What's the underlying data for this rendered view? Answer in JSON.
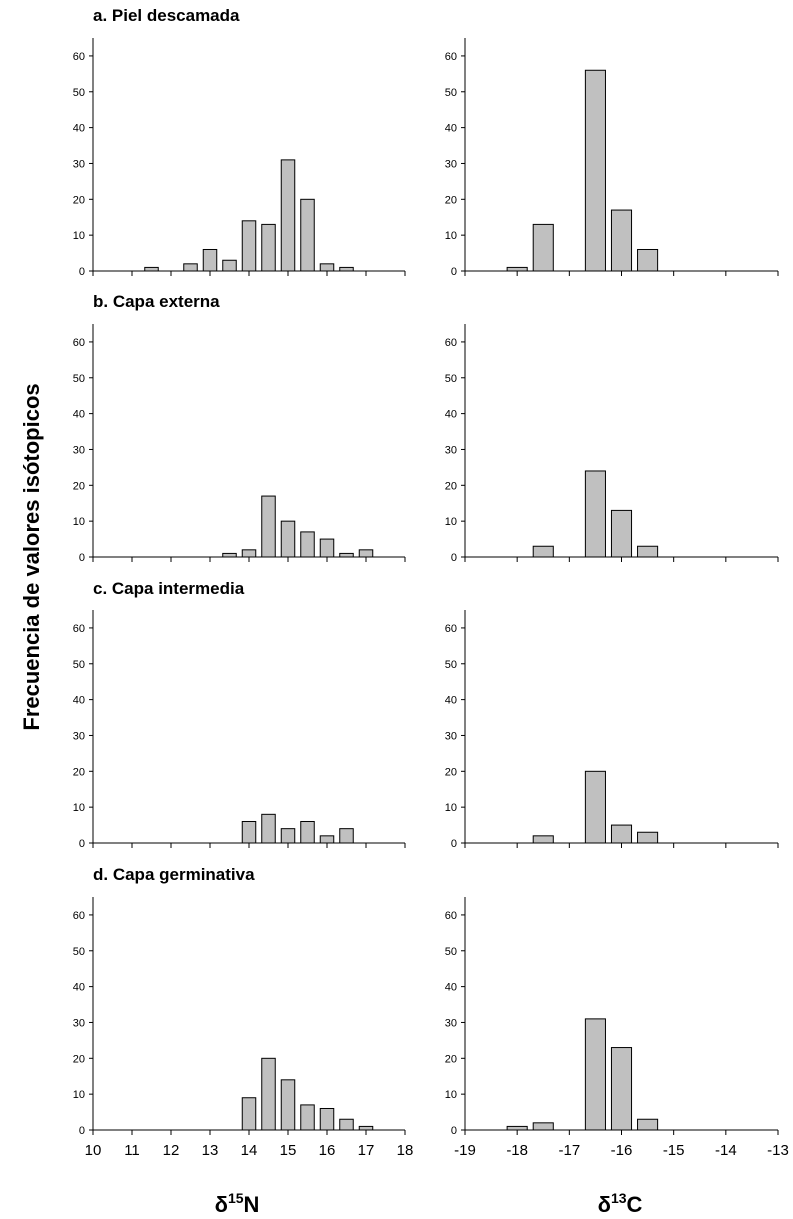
{
  "figure": {
    "ylabel": "Frecuencia de valores isótopicos",
    "xlabel_left": {
      "main": "δ",
      "sup": "15",
      "tail": "N"
    },
    "xlabel_right": {
      "main": "δ",
      "sup": "13",
      "tail": "C"
    },
    "colors": {
      "bar_fill": "#c0c0c0",
      "bar_stroke": "#000000",
      "axis": "#000000"
    }
  },
  "panels": [
    {
      "title": "a. Piel descamada"
    },
    {
      "title": "b. Capa externa"
    },
    {
      "title": "c. Capa intermedia"
    },
    {
      "title": "d. Capa germinativa"
    }
  ],
  "chart_data": [
    {
      "type": "bar",
      "panel": "a. Piel descamada",
      "isotope": "δ15N",
      "xlim": [
        10,
        18
      ],
      "ylim": [
        0,
        65
      ],
      "xticks": [
        "10",
        "11",
        "12",
        "13",
        "14",
        "15",
        "16",
        "17",
        "18"
      ],
      "yticks": [
        "0",
        "10",
        "20",
        "30",
        "40",
        "50",
        "60"
      ],
      "bin_width": 0.5,
      "x": [
        11.5,
        12.5,
        13,
        13.5,
        14,
        14.5,
        15,
        15.5,
        16,
        16.5
      ],
      "values": [
        1,
        2,
        6,
        3,
        14,
        13,
        31,
        20,
        2,
        1
      ]
    },
    {
      "type": "bar",
      "panel": "a. Piel descamada",
      "isotope": "δ13C",
      "xlim": [
        -19,
        -13
      ],
      "ylim": [
        0,
        65
      ],
      "xticks": [
        "-19",
        "-18",
        "-17",
        "-16",
        "-15",
        "-14",
        "-13"
      ],
      "yticks": [
        "0",
        "10",
        "20",
        "30",
        "40",
        "50",
        "60"
      ],
      "bin_width": 0.5,
      "x": [
        -18,
        -17.5,
        -16.5,
        -16,
        -15.5
      ],
      "values": [
        1,
        13,
        56,
        17,
        6
      ]
    },
    {
      "type": "bar",
      "panel": "b. Capa externa",
      "isotope": "δ15N",
      "xlim": [
        10,
        18
      ],
      "ylim": [
        0,
        65
      ],
      "xticks": [
        "10",
        "11",
        "12",
        "13",
        "14",
        "15",
        "16",
        "17",
        "18"
      ],
      "yticks": [
        "0",
        "10",
        "20",
        "30",
        "40",
        "50",
        "60"
      ],
      "bin_width": 0.5,
      "x": [
        13.5,
        14,
        14.5,
        15,
        15.5,
        16,
        16.5,
        17
      ],
      "values": [
        1,
        2,
        17,
        10,
        7,
        5,
        1,
        2
      ]
    },
    {
      "type": "bar",
      "panel": "b. Capa externa",
      "isotope": "δ13C",
      "xlim": [
        -19,
        -13
      ],
      "ylim": [
        0,
        65
      ],
      "xticks": [
        "-19",
        "-18",
        "-17",
        "-16",
        "-15",
        "-14",
        "-13"
      ],
      "yticks": [
        "0",
        "10",
        "20",
        "30",
        "40",
        "50",
        "60"
      ],
      "bin_width": 0.5,
      "x": [
        -17.5,
        -16.5,
        -16,
        -15.5
      ],
      "values": [
        3,
        24,
        13,
        3
      ]
    },
    {
      "type": "bar",
      "panel": "c. Capa intermedia",
      "isotope": "δ15N",
      "xlim": [
        10,
        18
      ],
      "ylim": [
        0,
        65
      ],
      "xticks": [
        "10",
        "11",
        "12",
        "13",
        "14",
        "15",
        "16",
        "17",
        "18"
      ],
      "yticks": [
        "0",
        "10",
        "20",
        "30",
        "40",
        "50",
        "60"
      ],
      "bin_width": 0.5,
      "x": [
        14,
        14.5,
        15,
        15.5,
        16,
        16.5
      ],
      "values": [
        6,
        8,
        4,
        6,
        2,
        4
      ]
    },
    {
      "type": "bar",
      "panel": "c. Capa intermedia",
      "isotope": "δ13C",
      "xlim": [
        -19,
        -13
      ],
      "ylim": [
        0,
        65
      ],
      "xticks": [
        "-19",
        "-18",
        "-17",
        "-16",
        "-15",
        "-14",
        "-13"
      ],
      "yticks": [
        "0",
        "10",
        "20",
        "30",
        "40",
        "50",
        "60"
      ],
      "bin_width": 0.5,
      "x": [
        -17.5,
        -16.5,
        -16,
        -15.5
      ],
      "values": [
        2,
        20,
        5,
        3
      ]
    },
    {
      "type": "bar",
      "panel": "d. Capa germinativa",
      "isotope": "δ15N",
      "xlim": [
        10,
        18
      ],
      "ylim": [
        0,
        65
      ],
      "xticks": [
        "10",
        "11",
        "12",
        "13",
        "14",
        "15",
        "16",
        "17",
        "18"
      ],
      "yticks": [
        "0",
        "10",
        "20",
        "30",
        "40",
        "50",
        "60"
      ],
      "bin_width": 0.5,
      "x": [
        14,
        14.5,
        15,
        15.5,
        16,
        16.5,
        17
      ],
      "values": [
        9,
        20,
        14,
        7,
        6,
        3,
        1
      ]
    },
    {
      "type": "bar",
      "panel": "d. Capa germinativa",
      "isotope": "δ13C",
      "xlim": [
        -19,
        -13
      ],
      "ylim": [
        0,
        65
      ],
      "xticks": [
        "-19",
        "-18",
        "-17",
        "-16",
        "-15",
        "-14",
        "-13"
      ],
      "yticks": [
        "0",
        "10",
        "20",
        "30",
        "40",
        "50",
        "60"
      ],
      "bin_width": 0.5,
      "x": [
        -18,
        -17.5,
        -16.5,
        -16,
        -15.5
      ],
      "values": [
        1,
        2,
        31,
        23,
        3
      ]
    }
  ]
}
